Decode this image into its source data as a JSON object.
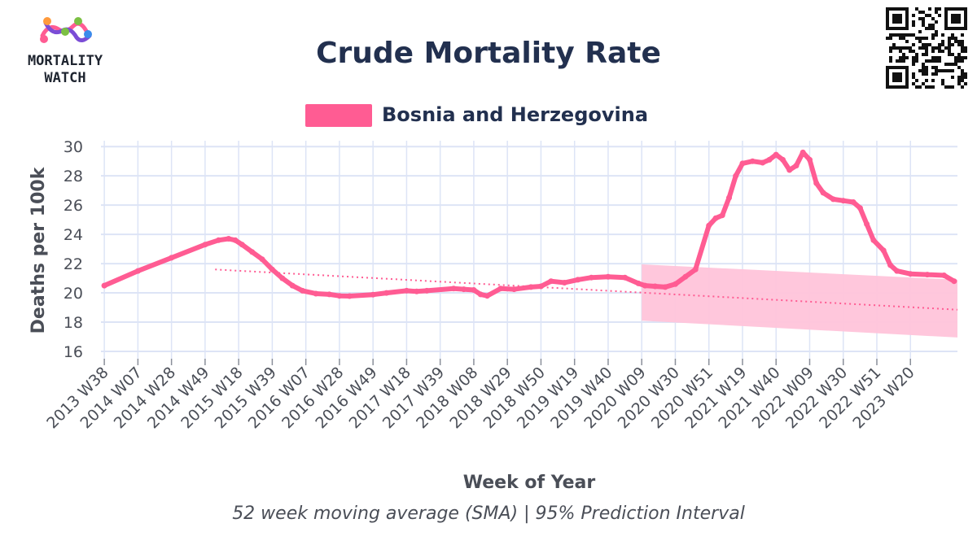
{
  "logo": {
    "line1": "MORTALITY",
    "line2": "WATCH"
  },
  "colors": {
    "series": "#ff5c93",
    "band": "#ffc4da",
    "grid": "#dde4f6",
    "title": "#22304f",
    "text": "#4a4e57"
  },
  "chart_data": {
    "type": "line",
    "title": "Crude Mortality Rate",
    "subtitle": "52 week moving average (SMA) | 95% Prediction Interval",
    "xlabel": "Week of Year",
    "ylabel": "Deaths per 100k",
    "ylim": [
      15.5,
      30.4
    ],
    "yticks": [
      16,
      18,
      20,
      22,
      24,
      26,
      28,
      30
    ],
    "xlim": [
      -0.1,
      25.4
    ],
    "categories": [
      "2013 W38",
      "2014 W07",
      "2014 W28",
      "2014 W49",
      "2015 W18",
      "2015 W39",
      "2016 W07",
      "2016 W28",
      "2016 W49",
      "2017 W18",
      "2017 W39",
      "2018 W08",
      "2018 W29",
      "2018 W50",
      "2019 W19",
      "2019 W40",
      "2020 W09",
      "2020 W30",
      "2020 W51",
      "2021 W19",
      "2021 W40",
      "2022 W09",
      "2022 W30",
      "2022 W51",
      "2023 W20"
    ],
    "grid": true,
    "legend_position": "top-center",
    "series": [
      {
        "name": "Bosnia and Herzegovina",
        "color": "#ff5c93",
        "x": [
          0,
          1,
          2,
          3,
          3.4,
          3.7,
          3.9,
          4.1,
          4.4,
          4.7,
          5,
          5.3,
          5.6,
          5.9,
          6.3,
          6.7,
          7,
          7.3,
          8,
          8.4,
          9,
          9.3,
          9.6,
          10.4,
          10.7,
          11,
          11.2,
          11.4,
          11.8,
          12.2,
          12.7,
          13,
          13.3,
          13.7,
          14.1,
          14.5,
          15,
          15.5,
          15.9,
          16.1,
          16.4,
          16.7,
          17,
          17.3,
          17.6,
          18,
          18.2,
          18.4,
          18.6,
          18.8,
          19,
          19.3,
          19.6,
          19.8,
          20,
          20.2,
          20.4,
          20.6,
          20.8,
          21,
          21.2,
          21.4,
          21.7,
          22,
          22.3,
          22.5,
          22.7,
          22.9,
          23.2,
          23.4,
          23.6,
          24,
          24.5,
          25,
          25.3
        ],
        "values": [
          20.5,
          21.5,
          22.4,
          23.3,
          23.6,
          23.7,
          23.6,
          23.3,
          22.8,
          22.3,
          21.6,
          21,
          20.5,
          20.15,
          19.95,
          19.9,
          19.8,
          19.78,
          19.88,
          20,
          20.15,
          20.1,
          20.15,
          20.3,
          20.25,
          20.2,
          19.9,
          19.8,
          20.3,
          20.25,
          20.4,
          20.45,
          20.8,
          20.7,
          20.9,
          21.05,
          21.1,
          21.05,
          20.65,
          20.5,
          20.45,
          20.4,
          20.6,
          21.1,
          21.6,
          24.6,
          25.1,
          25.3,
          26.5,
          28,
          28.85,
          29,
          28.9,
          29.1,
          29.45,
          29.1,
          28.4,
          28.7,
          29.6,
          29.1,
          27.5,
          26.85,
          26.4,
          26.3,
          26.2,
          25.8,
          24.7,
          23.6,
          22.9,
          21.9,
          21.5,
          21.3,
          21.25,
          21.2,
          20.8
        ]
      }
    ],
    "baseline": {
      "x": [
        3.3,
        25.4
      ],
      "y": [
        21.6,
        18.85
      ]
    },
    "prediction_interval": {
      "x": [
        16,
        25.4
      ],
      "upper": [
        21.95,
        20.9
      ],
      "lower": [
        18.1,
        16.95
      ]
    }
  }
}
